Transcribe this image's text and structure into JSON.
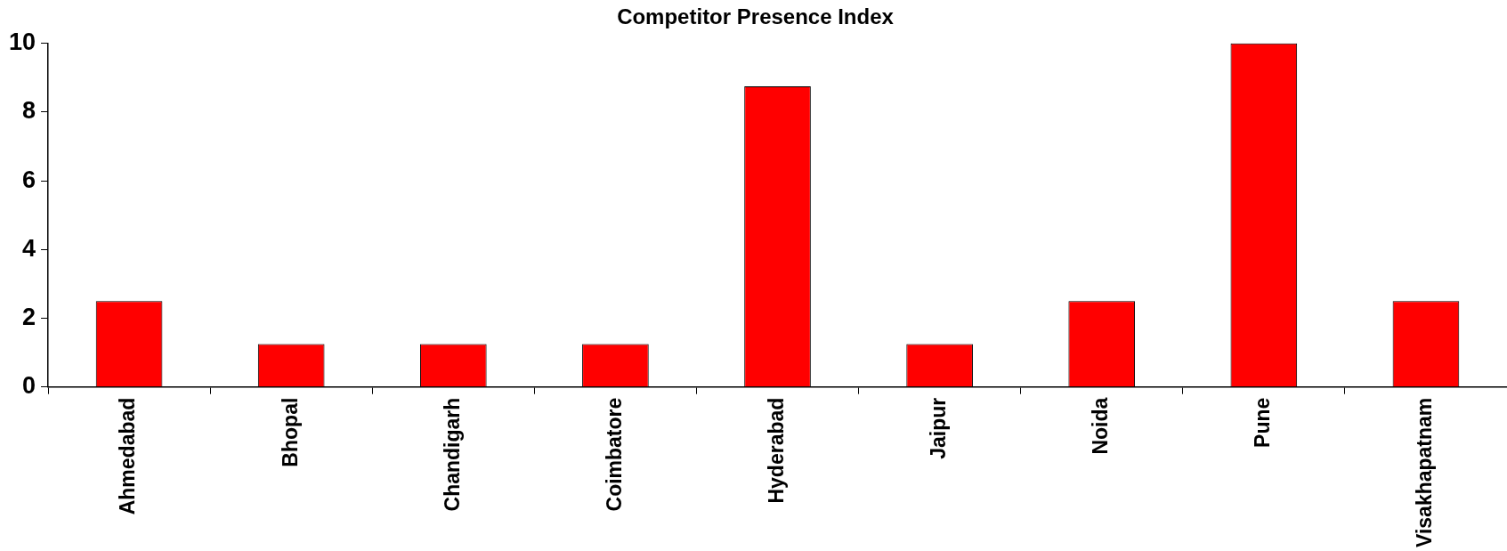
{
  "chart_data": {
    "type": "bar",
    "title": "Competitor Presence Index",
    "categories": [
      "Ahmedabad",
      "Bhopal",
      "Chandigarh",
      "Coimbatore",
      "Hyderabad",
      "Jaipur",
      "Noida",
      "Pune",
      "Visakhapatnam"
    ],
    "values": [
      2.5,
      1.25,
      1.25,
      1.25,
      8.75,
      1.25,
      2.5,
      10,
      2.5
    ],
    "color": "#ff0000",
    "ylim": [
      0,
      10
    ],
    "yticks": [
      0,
      2,
      4,
      6,
      8,
      10
    ],
    "grid": false,
    "legend": false
  }
}
